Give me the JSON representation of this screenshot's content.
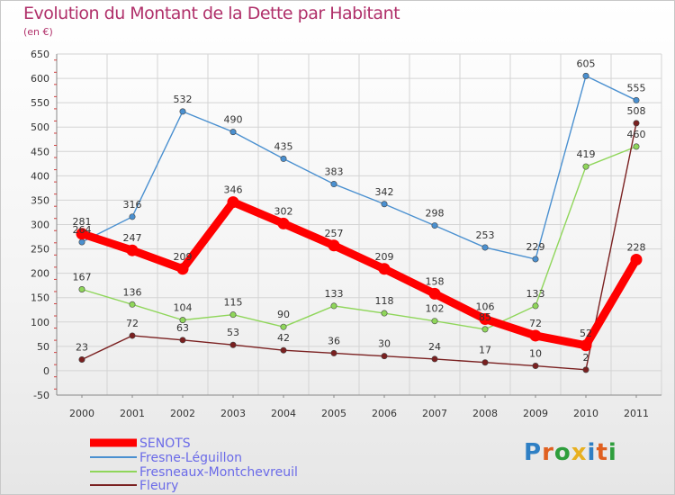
{
  "title": "Evolution du Montant de la Dette par Habitant",
  "subtitle": "(en €)",
  "logo": {
    "text": "Proxiti",
    "colors": [
      "#2e7fc4",
      "#e06020",
      "#2e9e3c",
      "#e8b020",
      "#2e7fc4",
      "#e06020",
      "#2e9e3c"
    ]
  },
  "chart_data": {
    "type": "line",
    "title": "Evolution du Montant de la Dette par Habitant",
    "ylabel": "(en €)",
    "x": [
      "2000",
      "2001",
      "2002",
      "2003",
      "2004",
      "2005",
      "2006",
      "2007",
      "2008",
      "2009",
      "2010",
      "2011"
    ],
    "ylim": [
      -50,
      650
    ],
    "yticks": [
      -50,
      0,
      50,
      100,
      150,
      200,
      250,
      300,
      350,
      400,
      450,
      500,
      550,
      600,
      650
    ],
    "grid": true,
    "legend_position": "bottom-left",
    "series": [
      {
        "name": "SENOTS",
        "color": "#ff0000",
        "values": [
          281,
          247,
          209,
          346,
          302,
          257,
          209,
          158,
          106,
          72,
          52,
          228
        ]
      },
      {
        "name": "Fresne-Léguillon",
        "color": "#4a90d0",
        "values": [
          264,
          316,
          532,
          490,
          435,
          383,
          342,
          298,
          253,
          229,
          605,
          555
        ]
      },
      {
        "name": "Fresneaux-Montchevreuil",
        "color": "#8fd65a",
        "values": [
          167,
          136,
          104,
          115,
          90,
          133,
          118,
          102,
          85,
          133,
          419,
          460
        ]
      },
      {
        "name": "Fleury",
        "color": "#7a2020",
        "values": [
          23,
          72,
          63,
          53,
          42,
          36,
          30,
          24,
          17,
          10,
          2,
          508
        ]
      }
    ],
    "data_labels": [
      [
        "281",
        "247",
        "209",
        "346",
        "302",
        "257",
        "209",
        "158",
        "106",
        "72",
        "52",
        "228"
      ],
      [
        "264",
        "316",
        "532",
        "490",
        "435",
        "383",
        "342",
        "298",
        "253",
        "229",
        "605",
        "555"
      ],
      [
        "167",
        "136",
        "104",
        "115",
        "90",
        "133",
        "118",
        "102",
        "85",
        "133",
        "419",
        "460"
      ],
      [
        "23",
        "72",
        "63",
        "53",
        "42",
        "36",
        "30",
        "24",
        "17",
        "10",
        "2",
        "508"
      ]
    ]
  }
}
